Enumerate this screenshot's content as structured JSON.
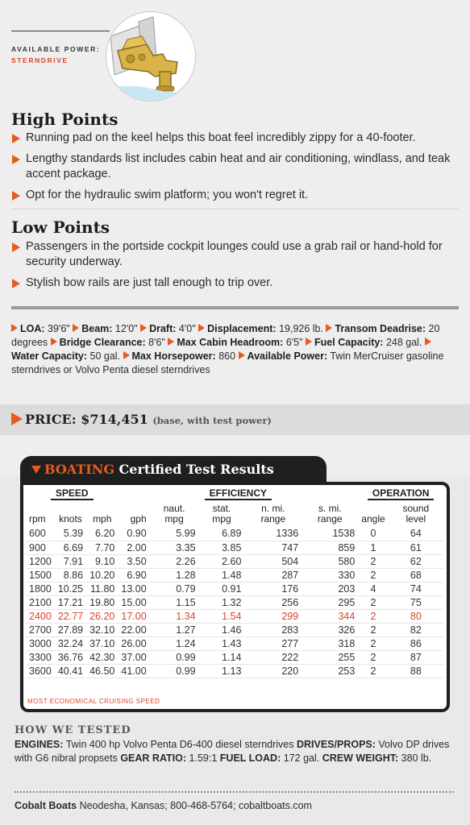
{
  "available_power": {
    "label": "AVAILABLE POWER:",
    "value": "STERNDRIVE"
  },
  "icons": {
    "engine": "sterndrive-engine-illustration",
    "bullet": "orange-triangle-bullet"
  },
  "colors": {
    "accent": "#e85a1f",
    "red": "#d6452e",
    "panel": "#1f1f1f",
    "background": "#eeeeee"
  },
  "high_points": {
    "title": "High Points",
    "items": [
      "Running pad on the keel helps this boat feel incredibly zippy for a 40-footer.",
      "Lengthy standards list includes cabin heat and air conditioning, windlass, and teak accent package.",
      "Opt for the hydraulic swim platform; you won't regret it."
    ]
  },
  "low_points": {
    "title": "Low Points",
    "items": [
      "Passengers in the portside cockpit lounges could use a grab rail or hand-hold for security underway.",
      "Stylish bow rails are just tall enough to trip over."
    ]
  },
  "specs": [
    {
      "label": "LOA:",
      "value": "39'6\""
    },
    {
      "label": "Beam:",
      "value": "12'0\""
    },
    {
      "label": "Draft:",
      "value": "4'0\""
    },
    {
      "label": "Displacement:",
      "value": "19,926 lb."
    },
    {
      "label": "Transom Deadrise:",
      "value": "20 degrees"
    },
    {
      "label": "Bridge Clearance:",
      "value": "8'6\""
    },
    {
      "label": "Max Cabin Headroom:",
      "value": "6'5\""
    },
    {
      "label": "Fuel Capacity:",
      "value": "248 gal."
    },
    {
      "label": "Water Capacity:",
      "value": "50 gal."
    },
    {
      "label": "Max Horsepower:",
      "value": "860"
    },
    {
      "label": "Available Power:",
      "value": "Twin MerCruiser gasoline sterndrives or Volvo Penta diesel sterndrives"
    }
  ],
  "price": {
    "label": "PRICE:",
    "value": "$714,451",
    "note": "(base, with test power)"
  },
  "test_results": {
    "title_brand": "BOATING",
    "title_rest": " Certified Test Results",
    "groups": [
      "SPEED",
      "EFFICIENCY",
      "OPERATION"
    ],
    "columns": [
      "rpm",
      "knots",
      "mph",
      "gph",
      "naut. mpg",
      "stat. mpg",
      "n. mi. range",
      "s. mi. range",
      "angle",
      "sound level"
    ],
    "rows": [
      [
        "600",
        "5.39",
        "6.20",
        "0.90",
        "5.99",
        "6.89",
        "1336",
        "1538",
        "0",
        "64"
      ],
      [
        "900",
        "6.69",
        "7.70",
        "2.00",
        "3.35",
        "3.85",
        "747",
        "859",
        "1",
        "61"
      ],
      [
        "1200",
        "7.91",
        "9.10",
        "3.50",
        "2.26",
        "2.60",
        "504",
        "580",
        "2",
        "62"
      ],
      [
        "1500",
        "8.86",
        "10.20",
        "6.90",
        "1.28",
        "1.48",
        "287",
        "330",
        "2",
        "68"
      ],
      [
        "1800",
        "10.25",
        "11.80",
        "13.00",
        "0.79",
        "0.91",
        "176",
        "203",
        "4",
        "74"
      ],
      [
        "2100",
        "17.21",
        "19.80",
        "15.00",
        "1.15",
        "1.32",
        "256",
        "295",
        "2",
        "75"
      ],
      [
        "2400",
        "22.77",
        "26.20",
        "17.00",
        "1.34",
        "1.54",
        "299",
        "344",
        "2",
        "80"
      ],
      [
        "2700",
        "27.89",
        "32.10",
        "22.00",
        "1.27",
        "1.46",
        "283",
        "326",
        "2",
        "82"
      ],
      [
        "3000",
        "32.24",
        "37.10",
        "26.00",
        "1.24",
        "1.43",
        "277",
        "318",
        "2",
        "86"
      ],
      [
        "3300",
        "36.76",
        "42.30",
        "37.00",
        "0.99",
        "1.14",
        "222",
        "255",
        "2",
        "87"
      ],
      [
        "3600",
        "40.41",
        "46.50",
        "41.00",
        "0.99",
        "1.13",
        "220",
        "253",
        "2",
        "88"
      ]
    ],
    "highlight_row": 6,
    "legend": "MOST ECONOMICAL CRUISING SPEED"
  },
  "how_we_tested": {
    "title": "HOW WE TESTED",
    "items": [
      {
        "label": "ENGINES:",
        "value": "Twin 400 hp Volvo Penta D6-400 diesel sterndrives"
      },
      {
        "label": "DRIVES/PROPS:",
        "value": "Volvo DP drives with G6 nibral propsets"
      },
      {
        "label": "GEAR RATIO:",
        "value": "1.59:1"
      },
      {
        "label": "FUEL LOAD:",
        "value": "172 gal."
      },
      {
        "label": "CREW WEIGHT:",
        "value": "380 lb."
      }
    ]
  },
  "contact": {
    "company": "Cobalt Boats",
    "details": "Neodesha, Kansas; 800-468-5764; cobaltboats.com"
  }
}
